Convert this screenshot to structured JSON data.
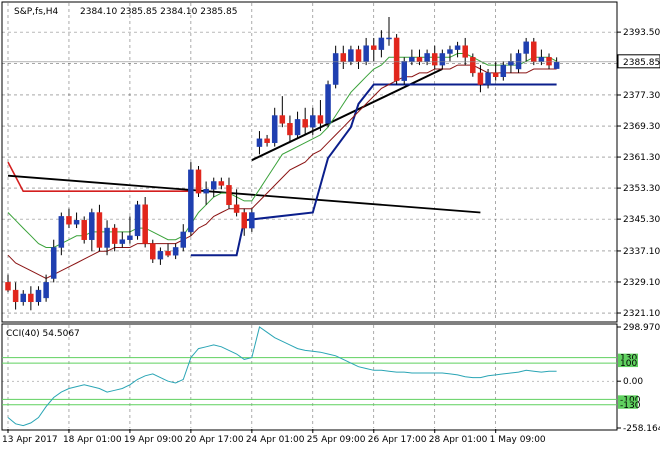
{
  "header": {
    "symbol_timeframe": "S&P,fs,H4",
    "ohlc": "2384.10 2385.85 2384.10 2385.85"
  },
  "indicator": {
    "label": "CCI(40) 54.5067"
  },
  "colors": {
    "bull": "#1f3fb0",
    "bear": "#e1261c",
    "fast_ma": "#3aa23a",
    "slow_ma": "#8b1414",
    "blue_line": "#0b1f8c",
    "black_line": "#000000",
    "red_line": "#d41f1f",
    "cci": "#2aa5b5",
    "level": "#5fd15f",
    "price_box": "#ffffff"
  },
  "chart_data": [
    {
      "type": "candlestick",
      "ylim": [
        2319.3,
        2397.4
      ],
      "price_axis_ticks": [
        "2393.50",
        "2385.40",
        "2377.30",
        "2369.30",
        "2361.30",
        "2353.30",
        "2345.30",
        "2337.10",
        "2329.10",
        "2321.10"
      ],
      "last_price_label": "2385.85",
      "x_labels": [
        "13 Apr 2017",
        "18 Apr 01:00",
        "19 Apr 09:00",
        "20 Apr 17:00",
        "24 Apr 01:00",
        "25 Apr 09:00",
        "26 Apr 17:00",
        "28 Apr 01:00",
        "1 May 09:00"
      ],
      "x_label_bar_index": [
        0,
        8,
        16,
        24,
        32,
        40,
        48,
        56,
        64
      ],
      "grid": "dashed",
      "candles": [
        [
          2329,
          2331,
          2326.5,
          2327
        ],
        [
          2327,
          2329,
          2322,
          2324
        ],
        [
          2324,
          2327,
          2323,
          2326
        ],
        [
          2326,
          2328,
          2321.8,
          2324
        ],
        [
          2324,
          2328,
          2323,
          2327
        ],
        [
          2325,
          2331,
          2324,
          2329
        ],
        [
          2330,
          2340,
          2329,
          2338
        ],
        [
          2338,
          2347,
          2336,
          2346
        ],
        [
          2346,
          2348,
          2343,
          2344
        ],
        [
          2344,
          2347,
          2343,
          2345
        ],
        [
          2345,
          2346,
          2339,
          2340
        ],
        [
          2340,
          2348,
          2337,
          2347
        ],
        [
          2347,
          2349,
          2337,
          2338
        ],
        [
          2338,
          2345,
          2336,
          2343
        ],
        [
          2343,
          2344,
          2337,
          2339
        ],
        [
          2339,
          2342,
          2338,
          2340
        ],
        [
          2340,
          2346,
          2339,
          2341
        ],
        [
          2341,
          2350,
          2340,
          2349
        ],
        [
          2349,
          2351,
          2338,
          2339
        ],
        [
          2339,
          2340,
          2334,
          2335
        ],
        [
          2335,
          2338,
          2333.5,
          2337
        ],
        [
          2337,
          2339,
          2335.5,
          2336
        ],
        [
          2336,
          2339,
          2335,
          2338
        ],
        [
          2338,
          2344,
          2337,
          2342
        ],
        [
          2342,
          2360,
          2341,
          2358
        ],
        [
          2358,
          2359,
          2351,
          2352
        ],
        [
          2352,
          2355,
          2349,
          2353
        ],
        [
          2353,
          2356,
          2351,
          2355
        ],
        [
          2355,
          2356,
          2353,
          2354
        ],
        [
          2354,
          2356,
          2348,
          2349
        ],
        [
          2349,
          2353,
          2346,
          2347
        ],
        [
          2347,
          2348,
          2341,
          2343
        ],
        [
          2343,
          2348,
          2342,
          2347
        ],
        [
          2364,
          2368,
          2362,
          2366
        ],
        [
          2366,
          2367,
          2364,
          2365
        ],
        [
          2365,
          2374,
          2364,
          2372
        ],
        [
          2372,
          2377,
          2369,
          2370
        ],
        [
          2370,
          2372,
          2365,
          2367
        ],
        [
          2367,
          2373,
          2366,
          2371
        ],
        [
          2371,
          2374,
          2367,
          2369
        ],
        [
          2369,
          2374,
          2367,
          2372
        ],
        [
          2372,
          2376,
          2368,
          2370
        ],
        [
          2370,
          2381,
          2369,
          2380
        ],
        [
          2380,
          2390,
          2379,
          2388
        ],
        [
          2388,
          2390,
          2384,
          2386
        ],
        [
          2386,
          2390,
          2385,
          2389
        ],
        [
          2389,
          2390,
          2384,
          2386
        ],
        [
          2386,
          2392,
          2385,
          2390
        ],
        [
          2390,
          2392,
          2386,
          2389
        ],
        [
          2389,
          2394,
          2387,
          2392
        ],
        [
          2392,
          2397.4,
          2390,
          2392
        ],
        [
          2392,
          2393,
          2380,
          2381
        ],
        [
          2381,
          2387,
          2380,
          2386
        ],
        [
          2386,
          2389,
          2385,
          2387
        ],
        [
          2387,
          2389,
          2385,
          2386
        ],
        [
          2386,
          2389,
          2385,
          2388
        ],
        [
          2388,
          2390,
          2384,
          2385
        ],
        [
          2385,
          2389,
          2384,
          2388
        ],
        [
          2388,
          2390,
          2386,
          2389
        ],
        [
          2389,
          2391,
          2387,
          2390
        ],
        [
          2390,
          2392,
          2385,
          2387
        ],
        [
          2387,
          2388,
          2382,
          2383
        ],
        [
          2383,
          2385,
          2378,
          2380
        ],
        [
          2380,
          2384,
          2379,
          2383
        ],
        [
          2383,
          2386,
          2381,
          2382
        ],
        [
          2382,
          2386,
          2381,
          2385
        ],
        [
          2385,
          2388,
          2383,
          2386
        ],
        [
          2384,
          2389,
          2383,
          2388
        ],
        [
          2388,
          2392,
          2386,
          2391
        ],
        [
          2391,
          2392,
          2385,
          2386
        ],
        [
          2386,
          2389,
          2385,
          2387
        ],
        [
          2387,
          2388,
          2384,
          2385
        ],
        [
          2384.1,
          2387,
          2384.1,
          2385.85
        ]
      ],
      "moving_averages": [
        {
          "color_key": "fast_ma",
          "values": [
            2347,
            2345,
            2343,
            2341,
            2339,
            2338,
            2338,
            2339,
            2340,
            2341,
            2341,
            2342,
            2342,
            2342,
            2342,
            2342,
            2342,
            2343,
            2343,
            2342,
            2341,
            2340,
            2340,
            2341,
            2344,
            2347,
            2349,
            2351,
            2352,
            2352,
            2351,
            2350,
            2350,
            2353,
            2356,
            2359,
            2362,
            2363,
            2364,
            2365,
            2366,
            2367,
            2369,
            2372,
            2375,
            2378,
            2380,
            2382,
            2384,
            2385,
            2387,
            2387,
            2387,
            2387,
            2387,
            2387,
            2387,
            2387,
            2387,
            2388,
            2388,
            2387,
            2386,
            2385,
            2385,
            2385,
            2385,
            2385,
            2386,
            2387,
            2387,
            2387,
            2386
          ]
        },
        {
          "color_key": "slow_ma",
          "values": [
            2336,
            2334,
            2333,
            2332,
            2331,
            2330,
            2331,
            2332,
            2333,
            2334,
            2335,
            2336,
            2337,
            2337,
            2338,
            2338,
            2338,
            2339,
            2339,
            2339,
            2339,
            2339,
            2339,
            2340,
            2341,
            2343,
            2344,
            2346,
            2347,
            2348,
            2348,
            2348,
            2348,
            2350,
            2352,
            2354,
            2356,
            2358,
            2359,
            2360,
            2362,
            2363,
            2365,
            2367,
            2369,
            2371,
            2373,
            2375,
            2377,
            2379,
            2380,
            2381,
            2382,
            2382,
            2383,
            2383,
            2384,
            2384,
            2384,
            2385,
            2385,
            2385,
            2384,
            2383,
            2383,
            2383,
            2383,
            2383,
            2383,
            2384,
            2384,
            2384,
            2384
          ]
        }
      ],
      "overlays": {
        "blue_steps": [
          [
            24,
            2336
          ],
          [
            30,
            2336
          ],
          [
            31,
            2345
          ],
          [
            40,
            2347
          ],
          [
            42,
            2361
          ],
          [
            45,
            2369
          ],
          [
            46,
            2375
          ],
          [
            48,
            2380
          ],
          [
            50,
            2380
          ],
          [
            62,
            2380
          ],
          [
            72,
            2380
          ]
        ],
        "black_down_line": [
          [
            0,
            2356.5
          ],
          [
            62,
            2347
          ]
        ],
        "black_up_line": [
          [
            32,
            2360.5
          ],
          [
            57,
            2384
          ]
        ],
        "red_line": [
          [
            0,
            2360
          ],
          [
            2,
            2352.5
          ],
          [
            5,
            2352.5
          ],
          [
            24,
            2352.5
          ]
        ]
      }
    },
    {
      "type": "line",
      "name": "CCI(40)",
      "ylim": [
        -258.1646,
        298.9708
      ],
      "y_ticks": [
        "298.9708",
        "0.00",
        "-258.1646"
      ],
      "levels": [
        130,
        100,
        -100,
        -130
      ],
      "level_labels": [
        "130",
        "100",
        "-100",
        "-130"
      ],
      "values": [
        -200,
        -235,
        -245,
        -230,
        -200,
        -140,
        -90,
        -60,
        -40,
        -30,
        -20,
        -30,
        -40,
        -60,
        -50,
        -40,
        -20,
        10,
        30,
        40,
        20,
        0,
        -10,
        10,
        130,
        180,
        190,
        200,
        190,
        170,
        150,
        120,
        130,
        298.97,
        270,
        240,
        220,
        200,
        180,
        170,
        165,
        160,
        150,
        140,
        120,
        100,
        80,
        70,
        60,
        60,
        55,
        50,
        50,
        45,
        45,
        45,
        45,
        45,
        40,
        35,
        25,
        20,
        20,
        30,
        35,
        40,
        45,
        50,
        60,
        55,
        50,
        55,
        54.5067
      ]
    }
  ]
}
